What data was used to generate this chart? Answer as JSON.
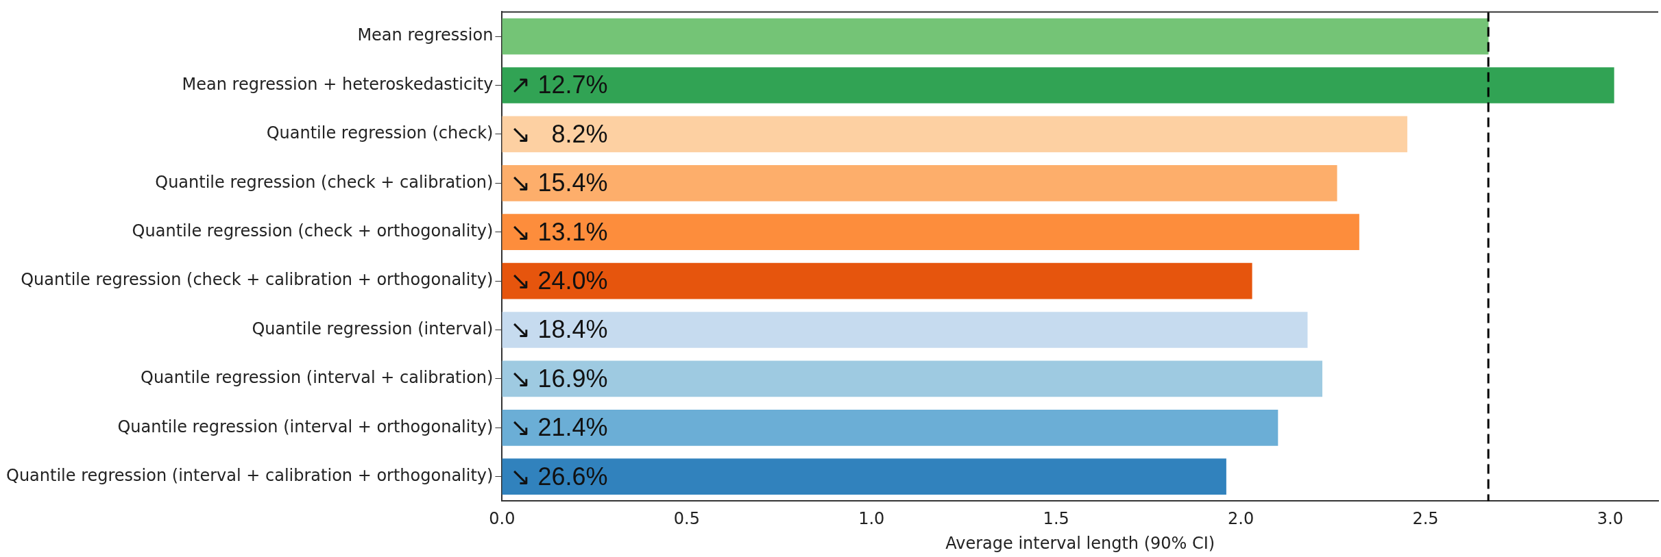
{
  "chart_data": {
    "type": "bar",
    "orientation": "horizontal",
    "xlabel": "Average interval length (90% CI)",
    "categories": [
      "Mean regression",
      "Mean regression + heteroskedasticity",
      "Quantile regression (check)",
      "Quantile regression (check + calibration)",
      "Quantile regression (check + orthogonality)",
      "Quantile regression (check + calibration + orthogonality)",
      "Quantile regression (interval)",
      "Quantile regression (interval + calibration)",
      "Quantile regression (interval + orthogonality)",
      "Quantile regression (interval + calibration + orthogonality)"
    ],
    "values": [
      2.67,
      3.01,
      2.45,
      2.26,
      2.32,
      2.03,
      2.18,
      2.22,
      2.1,
      1.96
    ],
    "colors": [
      "#74c476",
      "#31a354",
      "#fdd0a2",
      "#fdae6b",
      "#fd8d3c",
      "#e6550d",
      "#c6dbef",
      "#9ecae1",
      "#6baed6",
      "#3182bd"
    ],
    "annotations": [
      {
        "text": "↗ 12.7%",
        "y": "Mean regression + heteroskedasticity"
      },
      {
        "text": "↘   8.2%",
        "y": "Quantile regression (check)"
      },
      {
        "text": "↘ 15.4%",
        "y": "Quantile regression (check + calibration)"
      },
      {
        "text": "↘ 13.1%",
        "y": "Quantile regression (check + orthogonality)"
      },
      {
        "text": "↘ 24.0%",
        "y": "Quantile regression (check + calibration + orthogonality)"
      },
      {
        "text": "↘ 18.4%",
        "y": "Quantile regression (interval)"
      },
      {
        "text": "↘ 16.9%",
        "y": "Quantile regression (interval + calibration)"
      },
      {
        "text": "↘ 21.4%",
        "y": "Quantile regression (interval + orthogonality)"
      },
      {
        "text": "↘ 26.6%",
        "y": "Quantile regression (interval + calibration + orthogonality)"
      }
    ],
    "xlim": [
      0,
      3.13
    ],
    "xticks": [
      {
        "value": 0,
        "label": "0.0"
      },
      0.5,
      {
        "value": 1,
        "label": "1.0"
      },
      1.5,
      {
        "value": 2,
        "label": "2.0"
      },
      2.5,
      {
        "value": 3,
        "label": "3.0"
      }
    ],
    "ref_lines": [
      {
        "axis": "x",
        "value": 2.67,
        "color": "#000000",
        "line_style": "dashed"
      }
    ],
    "grid": false,
    "legend": false
  }
}
